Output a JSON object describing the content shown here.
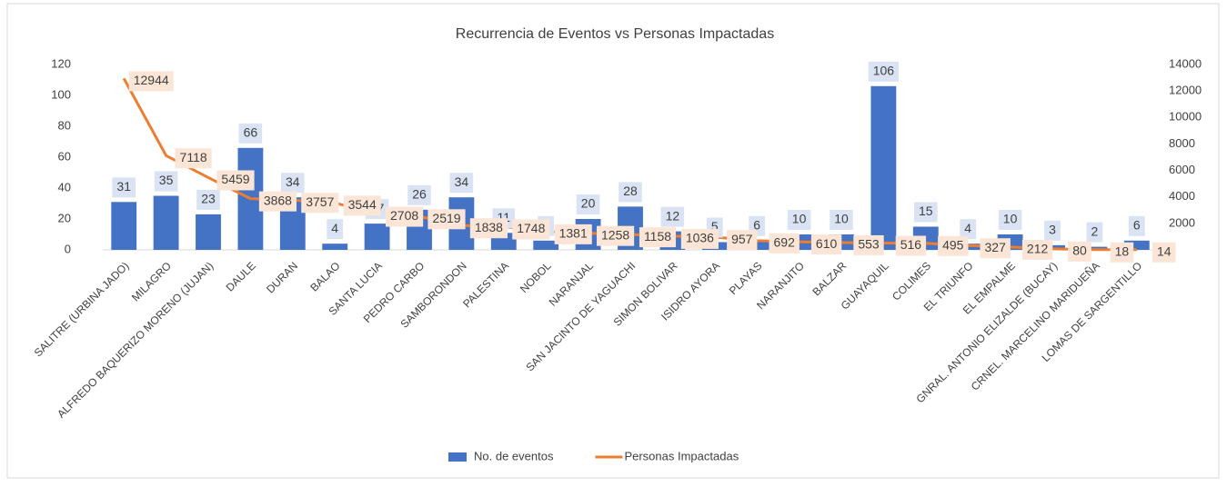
{
  "chart_data": {
    "type": "combo",
    "title": "Recurrencia de Eventos vs Personas Impactadas",
    "categories": [
      "SALITRE (URBINA JADO)",
      "MILAGRO",
      "ALFREDO BAQUERIZO MORENO (JUJAN)",
      "DAULE",
      "DURAN",
      "BALAO",
      "SANTA LUCIA",
      "PEDRO CARBO",
      "SAMBORONDON",
      "PALESTINA",
      "NOBOL",
      "NARANJAL",
      "SAN JACINTO DE YAGUACHI",
      "SIMON BOLIVAR",
      "ISIDRO AYORA",
      "PLAYAS",
      "NARANJITO",
      "BALZAR",
      "GUAYAQUIL",
      "COLIMES",
      "EL TRIUNFO",
      "EL EMPALME",
      "GNRAL. ANTONIO ELIZALDE (BUCAY)",
      "CRNEL. MARCELINO MARIDUEÑA",
      "LOMAS DE SARGENTILLO"
    ],
    "series": [
      {
        "name": "No. de eventos",
        "type": "bar",
        "color": "#4472c4",
        "label_color": "#dae3f3",
        "values": [
          31,
          35,
          23,
          66,
          34,
          4,
          17,
          26,
          34,
          11,
          6,
          20,
          28,
          12,
          5,
          6,
          10,
          10,
          106,
          15,
          4,
          10,
          3,
          2,
          6
        ]
      },
      {
        "name": "Personas Impactadas",
        "type": "line",
        "axis": "y2",
        "color": "#ed7d31",
        "label_color": "#fbe5d6",
        "values": [
          12944,
          7118,
          5459,
          3868,
          3757,
          3544,
          2708,
          2519,
          1838,
          1748,
          1381,
          1258,
          1158,
          1036,
          957,
          692,
          610,
          553,
          516,
          495,
          327,
          212,
          80,
          18,
          14
        ]
      }
    ],
    "ylim": [
      0,
      120
    ],
    "yticks": [
      0,
      20,
      40,
      60,
      80,
      100,
      120
    ],
    "y2lim": [
      0,
      14000
    ],
    "y2ticks": [
      0,
      2000,
      4000,
      6000,
      8000,
      10000,
      12000,
      14000
    ],
    "legend": "bottom"
  }
}
